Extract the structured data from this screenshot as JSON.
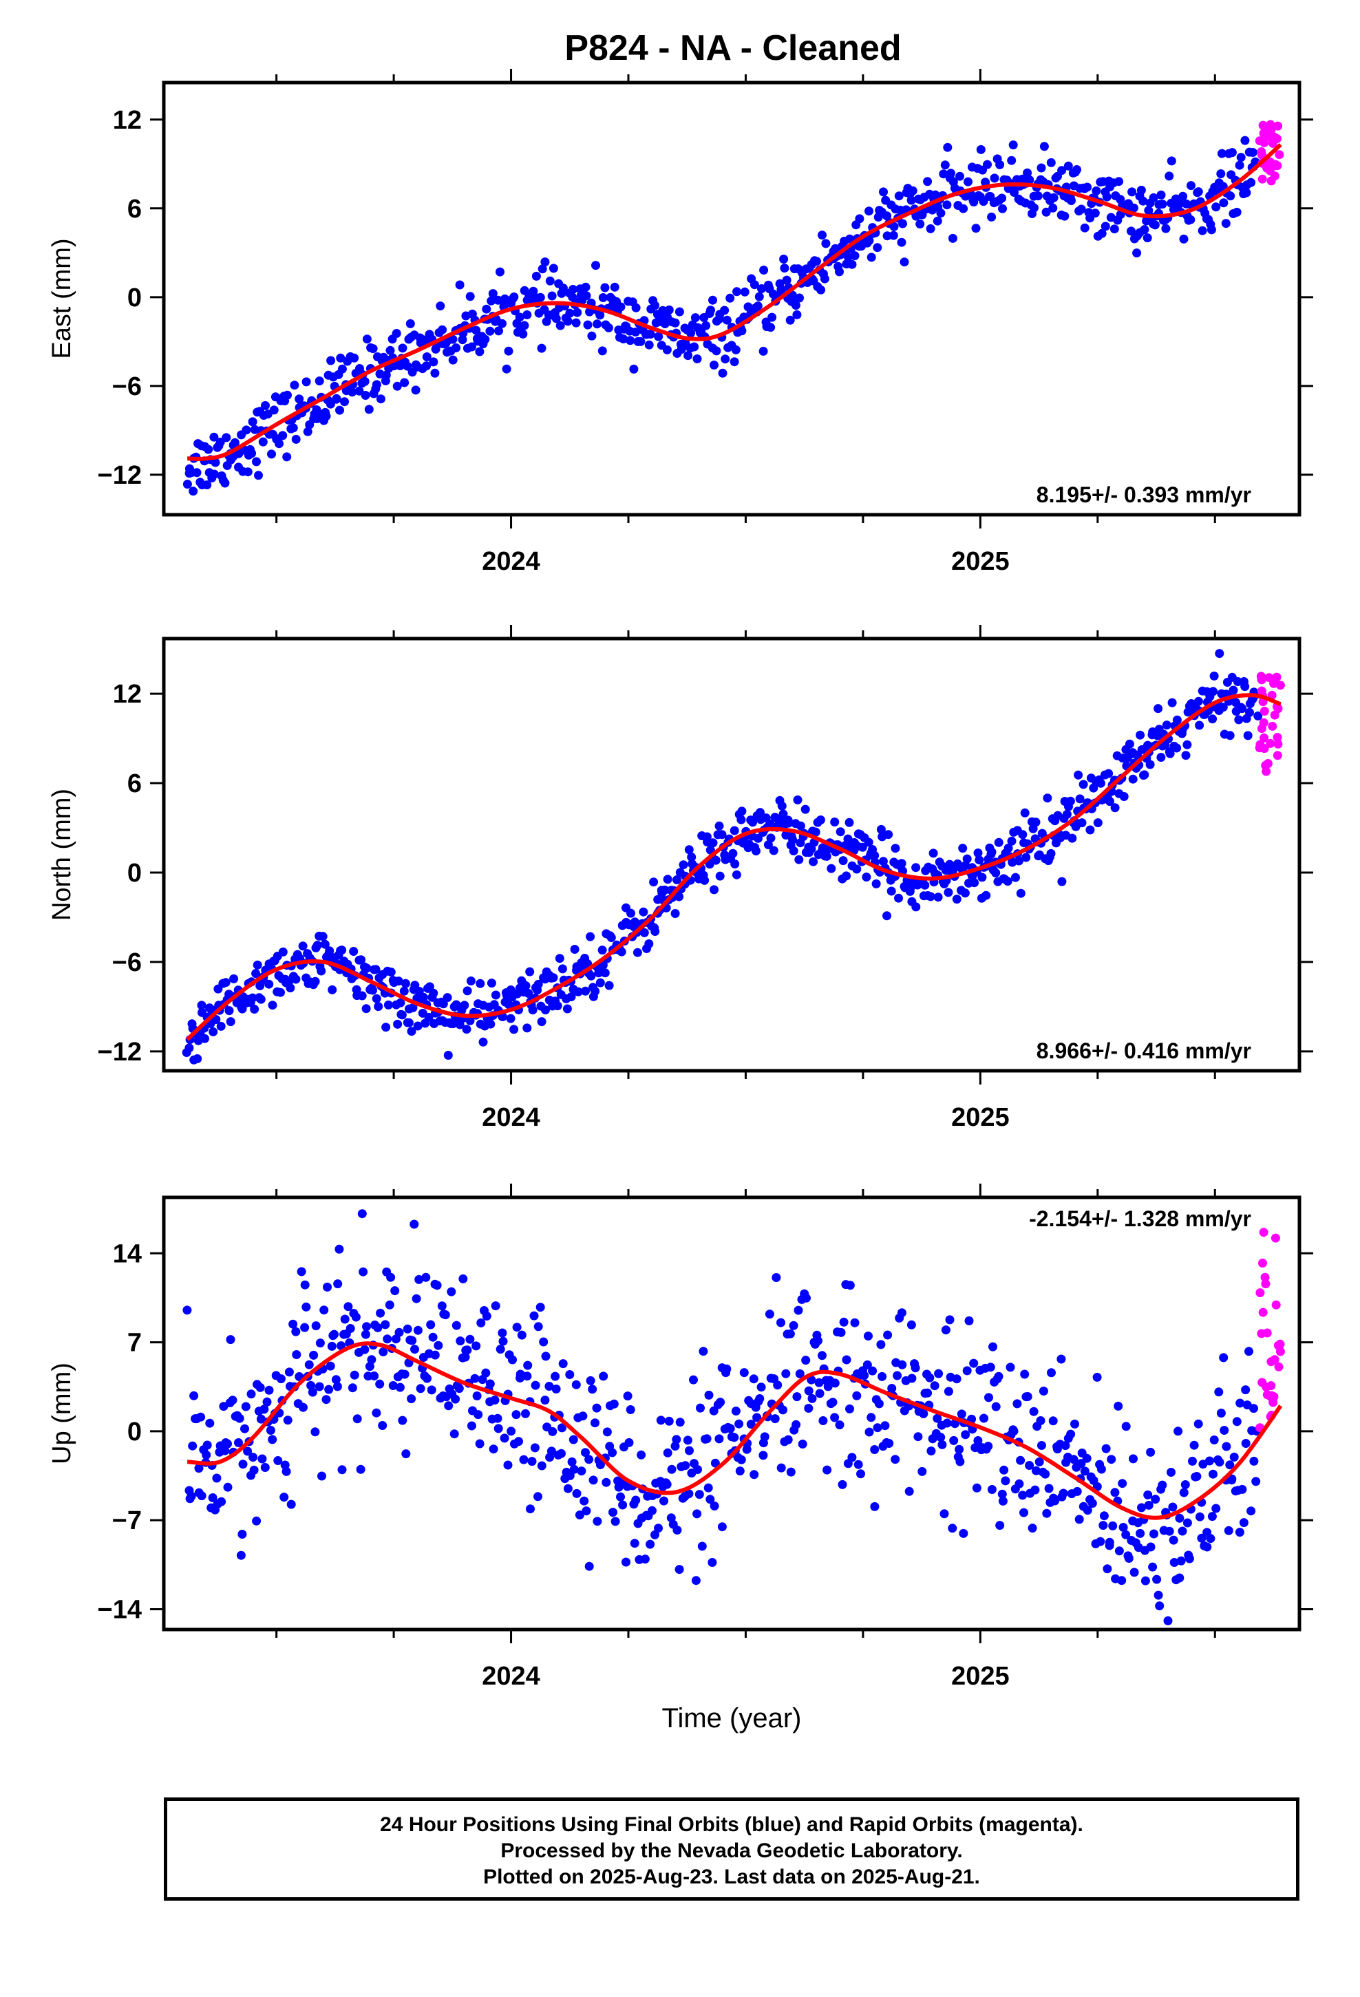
{
  "title": "P824  - NA - Cleaned",
  "colors": {
    "final": "#0000ff",
    "rapid": "#ff00ff",
    "fit": "#ff0000"
  },
  "xlabel": "Time (year)",
  "x_ticks": [
    "2024",
    "2025"
  ],
  "footer": {
    "line1": "24 Hour Positions Using Final Orbits (blue) and Rapid Orbits (magenta).",
    "line2": "Processed by the Nevada Geodetic Laboratory.",
    "line3": "Plotted on 2025-Aug-23. Last data on 2025-Aug-21."
  },
  "chart_data": [
    {
      "type": "scatter",
      "ylabel": "East (mm)",
      "xlim": [
        2023.26,
        2025.68
      ],
      "ylim": [
        -14.7,
        14.5
      ],
      "yticks": [
        -12,
        -6,
        0,
        6,
        12
      ],
      "rate_label": "8.195+/- 0.393 mm/yr",
      "fit": {
        "x": [
          2023.31,
          2023.35,
          2023.4,
          2023.5,
          2023.6,
          2023.7,
          2023.8,
          2023.9,
          2024.0,
          2024.1,
          2024.2,
          2024.3,
          2024.38,
          2024.45,
          2024.55,
          2024.65,
          2024.75,
          2024.85,
          2024.95,
          2025.05,
          2025.15,
          2025.25,
          2025.35,
          2025.45,
          2025.55,
          2025.64
        ],
        "y": [
          -10.9,
          -10.9,
          -10.5,
          -8.6,
          -6.8,
          -5.0,
          -3.6,
          -2.1,
          -0.8,
          -0.4,
          -0.9,
          -2.1,
          -2.8,
          -2.5,
          -0.6,
          1.8,
          4.1,
          5.7,
          7.0,
          7.6,
          7.4,
          6.5,
          5.5,
          5.9,
          7.8,
          10.3
        ]
      },
      "trend": [
        [
          2023.31,
          -11.5
        ],
        [
          2023.4,
          -10.5
        ],
        [
          2023.5,
          -8.7
        ],
        [
          2023.6,
          -6.9
        ],
        [
          2023.7,
          -5.1
        ],
        [
          2023.8,
          -3.7
        ],
        [
          2023.9,
          -2.2
        ],
        [
          2024.0,
          -0.9
        ],
        [
          2024.1,
          -0.5
        ],
        [
          2024.2,
          -1.0
        ],
        [
          2024.3,
          -2.1
        ],
        [
          2024.38,
          -2.9
        ],
        [
          2024.45,
          -2.5
        ],
        [
          2024.55,
          -0.6
        ],
        [
          2024.65,
          1.8
        ],
        [
          2024.75,
          4.1
        ],
        [
          2024.85,
          5.7
        ],
        [
          2024.95,
          7.0
        ],
        [
          2025.05,
          7.7
        ],
        [
          2025.15,
          7.4
        ],
        [
          2025.25,
          6.4
        ],
        [
          2025.35,
          5.5
        ],
        [
          2025.45,
          5.9
        ],
        [
          2025.55,
          7.8
        ],
        [
          2025.59,
          8.8
        ]
      ],
      "scatter_sigma": 1.1,
      "rapid": {
        "x_start": 2025.595,
        "x_end": 2025.64,
        "y_base": 9.6,
        "y_spread": 2.6
      }
    },
    {
      "type": "scatter",
      "ylabel": "North (mm)",
      "xlim": [
        2023.26,
        2025.68
      ],
      "ylim": [
        -13.3,
        15.7
      ],
      "yticks": [
        -12,
        -6,
        0,
        6,
        12
      ],
      "rate_label": "8.966+/- 0.416 mm/yr",
      "fit": {
        "x": [
          2023.31,
          2023.4,
          2023.5,
          2023.6,
          2023.7,
          2023.8,
          2023.9,
          2024.0,
          2024.1,
          2024.2,
          2024.3,
          2024.4,
          2024.5,
          2024.6,
          2024.7,
          2024.8,
          2024.9,
          2025.0,
          2025.1,
          2025.2,
          2025.3,
          2025.4,
          2025.5,
          2025.58,
          2025.64
        ],
        "y": [
          -11.2,
          -8.6,
          -6.5,
          -6.0,
          -7.3,
          -8.8,
          -9.6,
          -9.2,
          -7.7,
          -5.7,
          -3.0,
          0.4,
          2.6,
          2.8,
          1.6,
          0.1,
          -0.4,
          0.3,
          1.6,
          3.6,
          6.4,
          9.2,
          11.4,
          11.9,
          11.3
        ]
      },
      "trend": [
        [
          2023.31,
          -11.3
        ],
        [
          2023.4,
          -8.7
        ],
        [
          2023.5,
          -6.6
        ],
        [
          2023.6,
          -6.0
        ],
        [
          2023.7,
          -7.4
        ],
        [
          2023.8,
          -8.9
        ],
        [
          2023.9,
          -9.7
        ],
        [
          2024.0,
          -9.1
        ],
        [
          2024.1,
          -7.6
        ],
        [
          2024.2,
          -5.6
        ],
        [
          2024.3,
          -2.9
        ],
        [
          2024.4,
          0.5
        ],
        [
          2024.5,
          2.7
        ],
        [
          2024.6,
          2.8
        ],
        [
          2024.7,
          1.6
        ],
        [
          2024.8,
          0.1
        ],
        [
          2024.9,
          -0.5
        ],
        [
          2025.0,
          0.3
        ],
        [
          2025.1,
          1.6
        ],
        [
          2025.2,
          3.7
        ],
        [
          2025.3,
          6.4
        ],
        [
          2025.4,
          9.2
        ],
        [
          2025.5,
          11.4
        ],
        [
          2025.59,
          11.9
        ]
      ],
      "scatter_sigma": 1.0,
      "rapid": {
        "x_start": 2025.595,
        "x_end": 2025.64,
        "y_base": 10.0,
        "y_spread": 4.2
      }
    },
    {
      "type": "scatter",
      "ylabel": "Up (mm)",
      "xlim": [
        2023.26,
        2025.68
      ],
      "ylim": [
        -15.6,
        18.4
      ],
      "yticks": [
        -14,
        -7,
        0,
        7,
        14
      ],
      "rate_label": "-2.154+/- 1.328 mm/yr",
      "fit": {
        "x": [
          2023.31,
          2023.38,
          2023.45,
          2023.55,
          2023.65,
          2023.72,
          2023.8,
          2023.9,
          2024.0,
          2024.08,
          2024.15,
          2024.25,
          2024.35,
          2024.45,
          2024.55,
          2024.63,
          2024.7,
          2024.8,
          2024.9,
          2025.0,
          2025.1,
          2025.2,
          2025.3,
          2025.38,
          2025.46,
          2025.55,
          2025.64
        ],
        "y": [
          -2.4,
          -2.4,
          -0.5,
          3.8,
          6.5,
          6.8,
          5.5,
          3.8,
          2.6,
          1.6,
          -0.5,
          -3.9,
          -4.8,
          -2.6,
          1.5,
          4.3,
          4.5,
          3.0,
          1.6,
          0.3,
          -1.3,
          -3.6,
          -6.0,
          -6.8,
          -5.5,
          -2.6,
          2.0
        ]
      },
      "trend": [
        [
          2023.31,
          -2.5
        ],
        [
          2023.38,
          -2.4
        ],
        [
          2023.45,
          -0.5
        ],
        [
          2023.55,
          3.8
        ],
        [
          2023.65,
          6.5
        ],
        [
          2023.72,
          6.8
        ],
        [
          2023.8,
          5.5
        ],
        [
          2023.9,
          3.8
        ],
        [
          2024.0,
          2.6
        ],
        [
          2024.08,
          1.6
        ],
        [
          2024.15,
          -0.5
        ],
        [
          2024.25,
          -3.9
        ],
        [
          2024.35,
          -4.8
        ],
        [
          2024.45,
          -2.6
        ],
        [
          2024.55,
          1.5
        ],
        [
          2024.63,
          4.3
        ],
        [
          2024.7,
          4.5
        ],
        [
          2024.8,
          3.0
        ],
        [
          2024.9,
          1.6
        ],
        [
          2025.0,
          0.3
        ],
        [
          2025.1,
          -1.3
        ],
        [
          2025.2,
          -3.6
        ],
        [
          2025.3,
          -6.0
        ],
        [
          2025.38,
          -6.8
        ],
        [
          2025.46,
          -5.5
        ],
        [
          2025.55,
          -2.6
        ],
        [
          2025.59,
          -0.5
        ]
      ],
      "scatter_sigma": 3.6,
      "rapid": {
        "x_start": 2025.595,
        "x_end": 2025.64,
        "y_base": 8.0,
        "y_spread": 10.0
      }
    }
  ]
}
